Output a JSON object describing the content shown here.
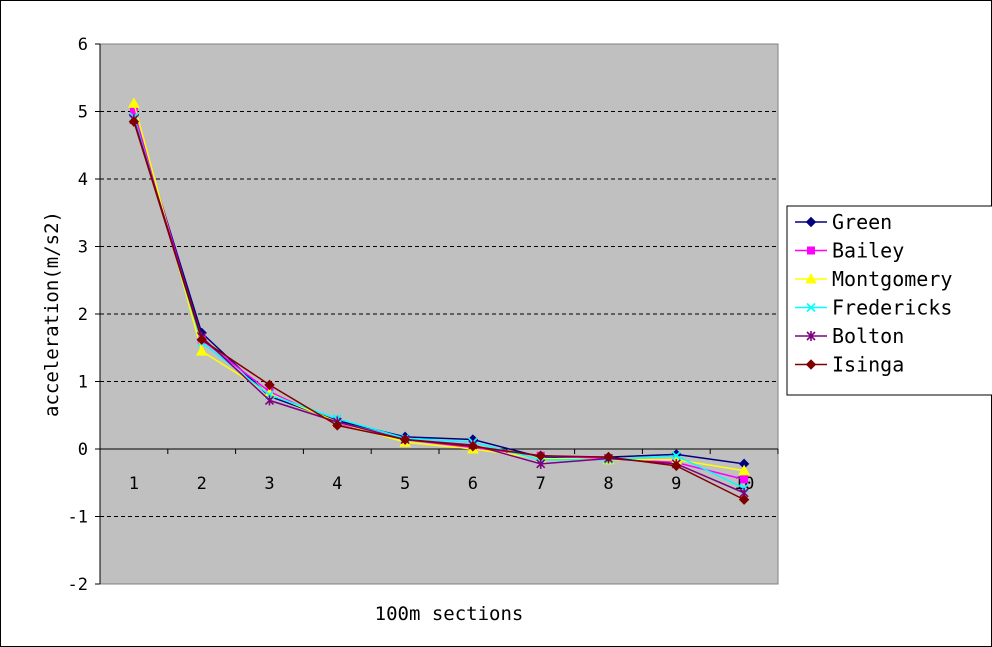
{
  "chart_data": {
    "type": "line",
    "title": "",
    "xlabel": "100m sections",
    "ylabel": "acceleration(m/s2)",
    "x": [
      1,
      2,
      3,
      4,
      5,
      6,
      7,
      8,
      9,
      10
    ],
    "x_tick_labels": [
      "1",
      "2",
      "3",
      "4",
      "5",
      "6",
      "7",
      "8",
      "9",
      "10"
    ],
    "ylim": [
      -2,
      6
    ],
    "y_ticks": [
      -2,
      -1,
      0,
      1,
      2,
      3,
      4,
      5,
      6
    ],
    "y_tick_labels": [
      "-2",
      "-1",
      "0",
      "1",
      "2",
      "3",
      "4",
      "5",
      "6"
    ],
    "grid": "dashed horizontal",
    "plot_background": "#c0c0c0",
    "legend_position": "right",
    "series": [
      {
        "name": "Green",
        "color": "#000080",
        "marker": "diamond",
        "values": [
          4.95,
          1.72,
          0.78,
          0.42,
          0.18,
          0.14,
          -0.12,
          -0.12,
          -0.08,
          -0.22
        ]
      },
      {
        "name": "Bailey",
        "color": "#ff00ff",
        "marker": "square",
        "values": [
          5.0,
          1.62,
          0.85,
          0.38,
          0.14,
          0.02,
          -0.1,
          -0.14,
          -0.2,
          -0.45
        ]
      },
      {
        "name": "Montgomery",
        "color": "#ffff00",
        "marker": "triangle",
        "values": [
          5.12,
          1.45,
          0.82,
          0.4,
          0.1,
          0.0,
          -0.14,
          -0.16,
          -0.16,
          -0.32
        ]
      },
      {
        "name": "Fredericks",
        "color": "#00ffff",
        "marker": "x",
        "values": [
          4.92,
          1.58,
          0.8,
          0.45,
          0.16,
          0.1,
          -0.16,
          -0.16,
          -0.1,
          -0.58
        ]
      },
      {
        "name": "Bolton",
        "color": "#800080",
        "marker": "star",
        "values": [
          4.88,
          1.66,
          0.72,
          0.4,
          0.14,
          0.06,
          -0.22,
          -0.14,
          -0.22,
          -0.65
        ]
      },
      {
        "name": "Isinga",
        "color": "#800000",
        "marker": "diamond",
        "values": [
          4.85,
          1.62,
          0.95,
          0.35,
          0.14,
          0.04,
          -0.1,
          -0.12,
          -0.25,
          -0.75
        ]
      }
    ]
  }
}
